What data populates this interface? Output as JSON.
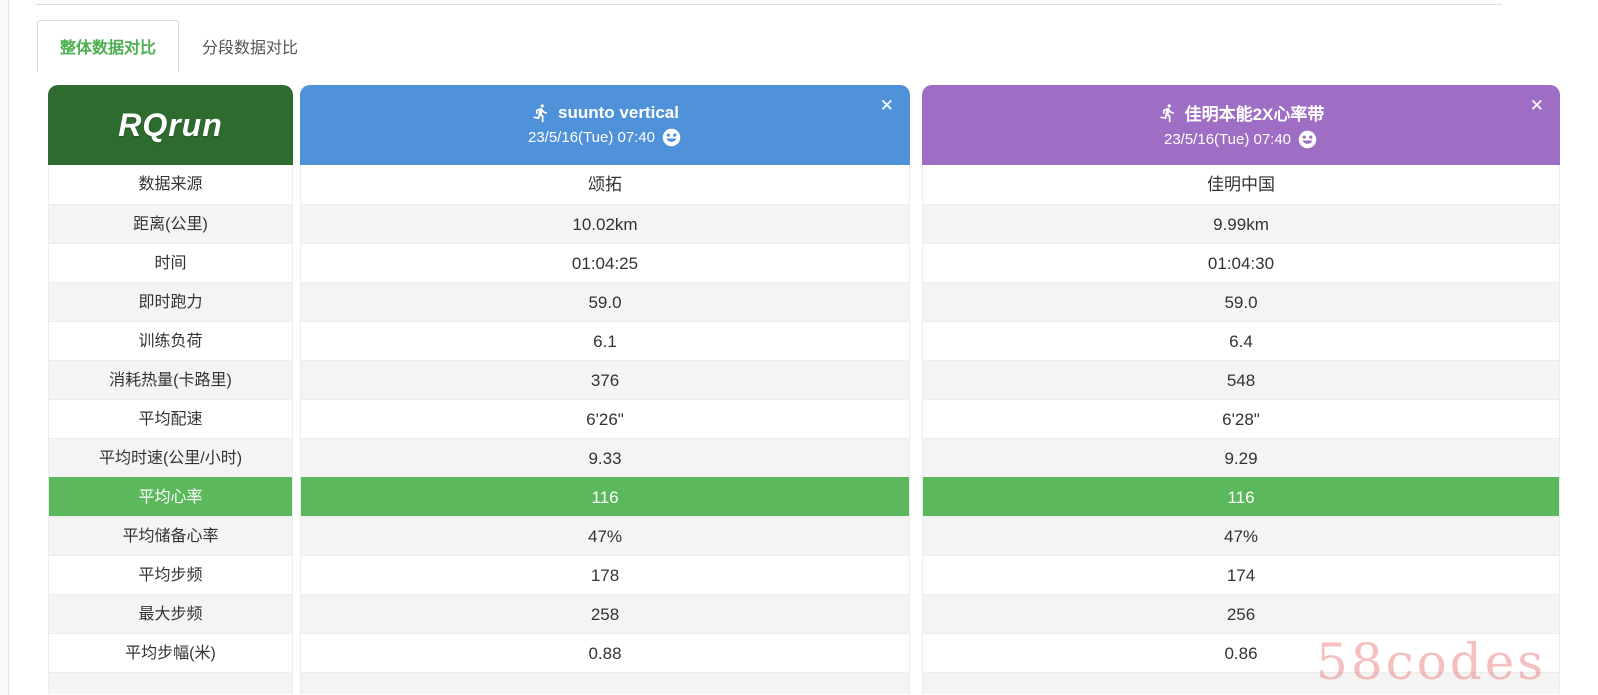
{
  "tabs": [
    {
      "label": "整体数据对比",
      "active": true
    },
    {
      "label": "分段数据对比",
      "active": false
    }
  ],
  "logo": {
    "text": "RQrun"
  },
  "devices": [
    {
      "name": "suunto vertical",
      "datetime": "23/5/16(Tue) 07:40",
      "color": "#4f92d9",
      "close_label": "✕"
    },
    {
      "name": "佳明本能2X心率带",
      "datetime": "23/5/16(Tue) 07:40",
      "color": "#9e6ec4",
      "close_label": "✕"
    }
  ],
  "table": {
    "rows": [
      {
        "label": "数据来源",
        "values": [
          "颂拓",
          "佳明中国"
        ]
      },
      {
        "label": "距离(公里)",
        "values": [
          "10.02km",
          "9.99km"
        ]
      },
      {
        "label": "时间",
        "values": [
          "01:04:25",
          "01:04:30"
        ]
      },
      {
        "label": "即时跑力",
        "values": [
          "59.0",
          "59.0"
        ]
      },
      {
        "label": "训练负荷",
        "values": [
          "6.1",
          "6.4"
        ]
      },
      {
        "label": "消耗热量(卡路里)",
        "values": [
          "376",
          "548"
        ]
      },
      {
        "label": "平均配速",
        "values": [
          "6'26\"",
          "6'28\""
        ]
      },
      {
        "label": "平均时速(公里/小时)",
        "values": [
          "9.33",
          "9.29"
        ]
      },
      {
        "label": "平均心率",
        "values": [
          "116",
          "116"
        ],
        "highlight": true
      },
      {
        "label": "平均储备心率",
        "values": [
          "47%",
          "47%"
        ]
      },
      {
        "label": "平均步频",
        "values": [
          "178",
          "174"
        ]
      },
      {
        "label": "最大步频",
        "values": [
          "258",
          "256"
        ]
      },
      {
        "label": "平均步幅(米)",
        "values": [
          "0.88",
          "0.86"
        ]
      }
    ]
  },
  "colors": {
    "logo_green": "#2e6b2f",
    "device_blue": "#4f92d9",
    "device_purple": "#9e6ec4",
    "highlight_green": "#5cb85c",
    "tab_active_green": "#4caf50",
    "stripe_gray": "#f4f4f4"
  },
  "watermark": "58codes"
}
